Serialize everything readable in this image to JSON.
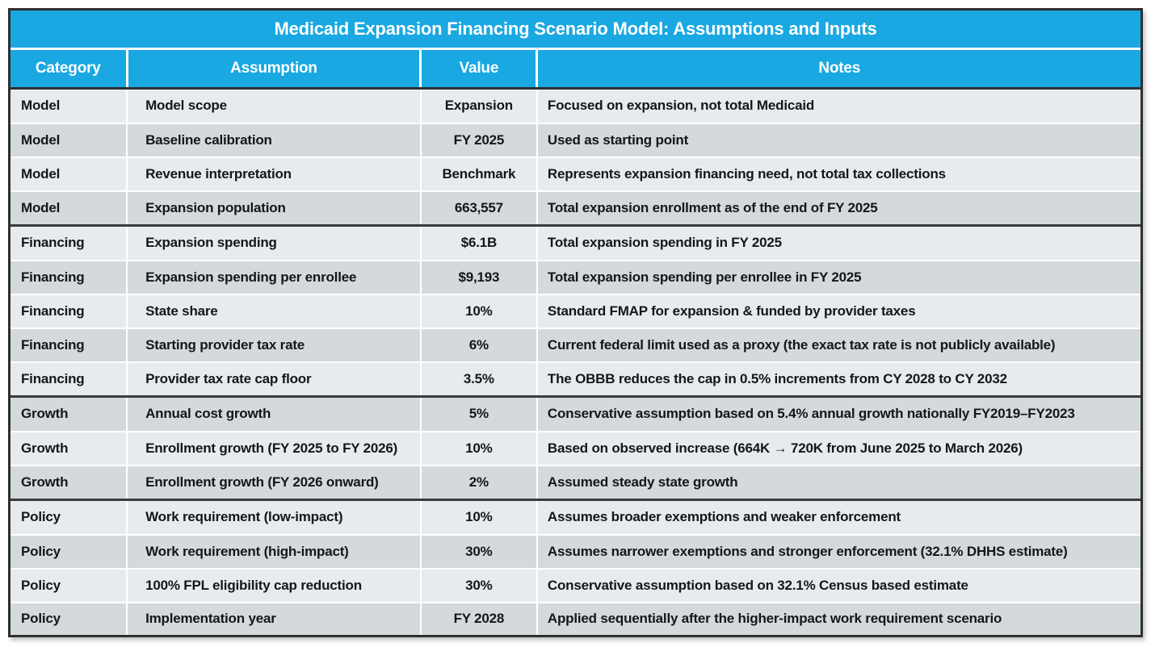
{
  "title": "Medicaid Expansion Financing Scenario Model: Assumptions and Inputs",
  "colors": {
    "header_blue": "#19a8e2",
    "row_light": "#e8ebed",
    "row_dark": "#d4d9db",
    "border_dark": "#2e2f31",
    "header_text": "#ffffff",
    "body_text": "#151618"
  },
  "columns": [
    "Category",
    "Assumption",
    "Value",
    "Notes"
  ],
  "rows": [
    {
      "category": "Model",
      "assumption": "Model scope",
      "value": "Expansion",
      "notes": "Focused on expansion, not total Medicaid",
      "group_start": false
    },
    {
      "category": "Model",
      "assumption": "Baseline calibration",
      "value": "FY 2025",
      "notes": "Used as starting point",
      "group_start": false
    },
    {
      "category": "Model",
      "assumption": "Revenue interpretation",
      "value": "Benchmark",
      "notes": "Represents expansion financing need, not total tax collections",
      "group_start": false
    },
    {
      "category": "Model",
      "assumption": "Expansion population",
      "value": "663,557",
      "notes": "Total expansion enrollment as of the end of FY 2025",
      "group_start": false
    },
    {
      "category": "Financing",
      "assumption": "Expansion spending",
      "value": "$6.1B",
      "notes": "Total expansion spending in FY 2025",
      "group_start": true
    },
    {
      "category": "Financing",
      "assumption": "Expansion spending per enrollee",
      "value": "$9,193",
      "notes": "Total expansion spending per enrollee in FY 2025",
      "group_start": false
    },
    {
      "category": "Financing",
      "assumption": "State share",
      "value": "10%",
      "notes": "Standard FMAP for expansion & funded by provider taxes",
      "group_start": false
    },
    {
      "category": "Financing",
      "assumption": "Starting provider tax rate",
      "value": "6%",
      "notes": "Current federal limit used as a proxy (the exact tax rate is not publicly available)",
      "group_start": false
    },
    {
      "category": "Financing",
      "assumption": "Provider tax rate cap floor",
      "value": "3.5%",
      "notes": "The OBBB reduces the cap in 0.5% increments from CY 2028 to CY 2032",
      "group_start": false
    },
    {
      "category": "Growth",
      "assumption": "Annual cost growth",
      "value": "5%",
      "notes": "Conservative assumption based on 5.4% annual growth nationally FY2019–FY2023",
      "group_start": true
    },
    {
      "category": "Growth",
      "assumption": "Enrollment growth (FY 2025 to FY 2026)",
      "value": "10%",
      "notes": "Based on observed increase (664K → 720K from June 2025 to March 2026)",
      "group_start": false
    },
    {
      "category": "Growth",
      "assumption": "Enrollment growth (FY 2026 onward)",
      "value": "2%",
      "notes": "Assumed steady state growth",
      "group_start": false
    },
    {
      "category": "Policy",
      "assumption": "Work requirement (low-impact)",
      "value": "10%",
      "notes": "Assumes broader exemptions and weaker enforcement",
      "group_start": true
    },
    {
      "category": "Policy",
      "assumption": "Work requirement (high-impact)",
      "value": "30%",
      "notes": "Assumes narrower exemptions and stronger enforcement (32.1% DHHS estimate)",
      "group_start": false
    },
    {
      "category": "Policy",
      "assumption": "100% FPL eligibility cap reduction",
      "value": "30%",
      "notes": "Conservative assumption based on 32.1% Census based estimate",
      "group_start": false
    },
    {
      "category": "Policy",
      "assumption": "Implementation year",
      "value": "FY 2028",
      "notes": "Applied sequentially after the higher-impact work requirement scenario",
      "group_start": false
    }
  ]
}
